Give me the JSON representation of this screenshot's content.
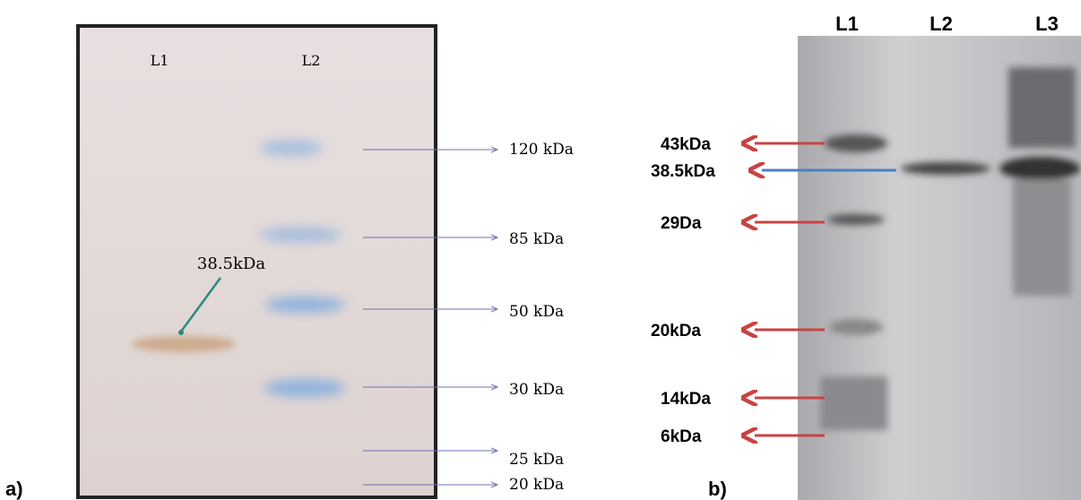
{
  "panel_a": {
    "label": "a)",
    "lanes": [
      "L1",
      "L2"
    ],
    "band_label": "38.5kDa",
    "markers": [
      "120 kDa",
      "85 kDa",
      "50 kDa",
      "30 kDa",
      "25 kDa",
      "20 kDa"
    ]
  },
  "panel_b": {
    "label": "b)",
    "lanes": [
      "L1",
      "L2",
      "L3"
    ],
    "markers": [
      "43kDa",
      "38.5kDa",
      "29Da",
      "20kDa",
      "14kDa",
      "6kDa"
    ]
  }
}
